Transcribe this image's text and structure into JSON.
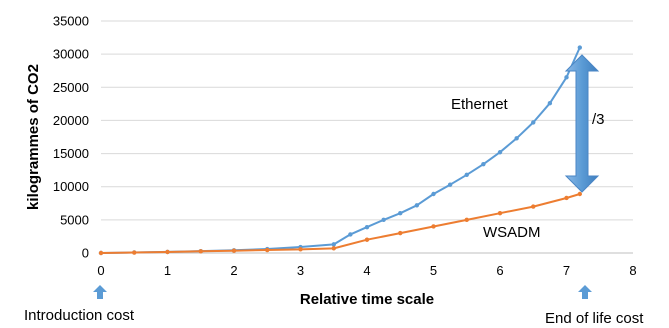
{
  "chart_data": {
    "type": "line",
    "title": "",
    "xlabel": "Relative time scale",
    "ylabel": "kilogrammes of CO2",
    "xlim": [
      0,
      8
    ],
    "ylim": [
      0,
      35000
    ],
    "x_ticks": [
      "0",
      "1",
      "2",
      "3",
      "4",
      "5",
      "6",
      "7",
      "8"
    ],
    "y_ticks": [
      "0",
      "5000",
      "10000",
      "15000",
      "20000",
      "25000",
      "30000",
      "35000"
    ],
    "grid": "horizontal",
    "legend": "none",
    "series": [
      {
        "name": "Ethernet",
        "color": "#5b9bd5",
        "x": [
          0,
          0.5,
          1,
          1.5,
          2,
          2.5,
          3,
          3.5,
          3.75,
          4,
          4.25,
          4.5,
          4.75,
          5,
          5.25,
          5.5,
          5.75,
          6,
          6.25,
          6.5,
          6.75,
          7,
          7.2
        ],
        "y": [
          0,
          80,
          160,
          280,
          400,
          600,
          900,
          1300,
          2800,
          3900,
          5000,
          6000,
          7200,
          8900,
          10300,
          11800,
          13400,
          15200,
          17300,
          19700,
          22600,
          26500,
          31000
        ]
      },
      {
        "name": "WSADM",
        "color": "#ed7d31",
        "x": [
          0,
          0.5,
          1,
          1.5,
          2,
          2.5,
          3,
          3.5,
          4,
          4.5,
          5,
          5.5,
          6,
          6.5,
          7,
          7.2
        ],
        "y": [
          0,
          70,
          150,
          250,
          350,
          450,
          550,
          700,
          2000,
          3000,
          4000,
          5000,
          6000,
          7000,
          8300,
          8900
        ]
      }
    ],
    "annotations": {
      "ratio_label": "/3",
      "start_label": "Introduction cost",
      "end_label": "End of life cost",
      "arrow_color": "#5b9bd5"
    }
  }
}
